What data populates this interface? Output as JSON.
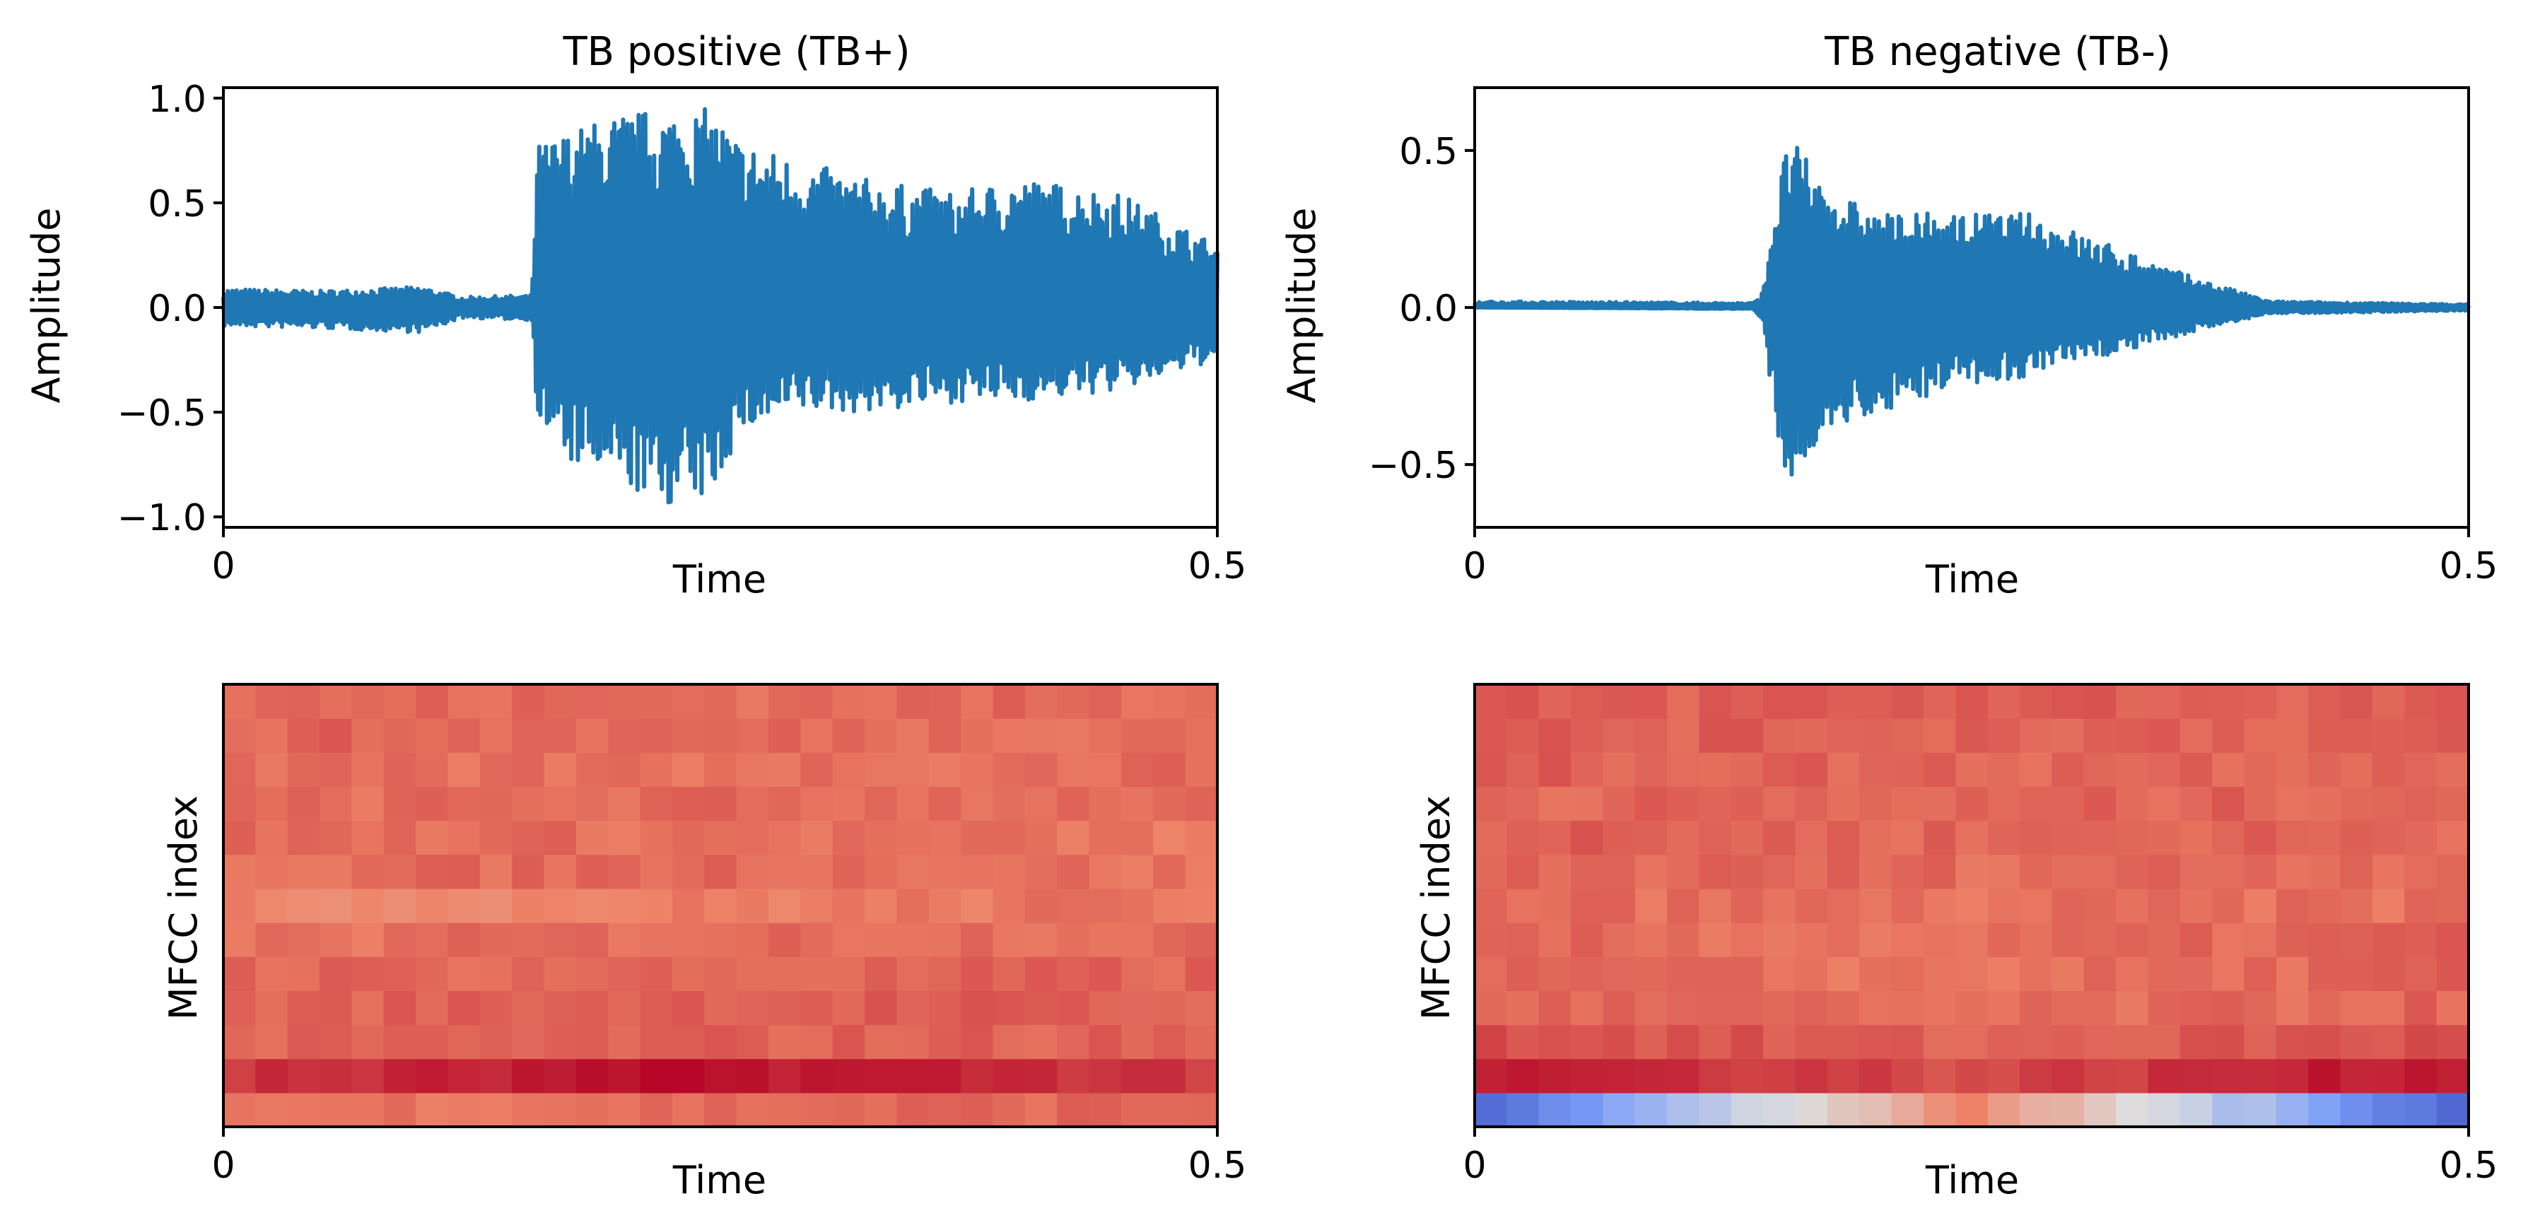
{
  "chart_data": [
    {
      "type": "line",
      "title": "TB positive (TB+)",
      "xlabel": "Time",
      "ylabel": "Amplitude",
      "xlim": [
        0,
        0.5
      ],
      "ylim": [
        -1.05,
        1.05
      ],
      "xticks": [
        {
          "value": 0,
          "label": "0"
        },
        {
          "value": 0.5,
          "label": "0.5"
        }
      ],
      "yticks": [
        {
          "value": -1.0,
          "label": "−1.0"
        },
        {
          "value": -0.5,
          "label": "−0.5"
        },
        {
          "value": 0.0,
          "label": "0.0"
        },
        {
          "value": 0.5,
          "label": "0.5"
        },
        {
          "value": 1.0,
          "label": "1.0"
        }
      ],
      "color": "#1f77b4",
      "envelope": [
        {
          "t": 0.0,
          "max": 0.09,
          "min": -0.09
        },
        {
          "t": 0.05,
          "max": 0.08,
          "min": -0.1
        },
        {
          "t": 0.1,
          "max": 0.1,
          "min": -0.12
        },
        {
          "t": 0.12,
          "max": 0.05,
          "min": -0.05
        },
        {
          "t": 0.155,
          "max": 0.06,
          "min": -0.06
        },
        {
          "t": 0.158,
          "max": 0.78,
          "min": -0.55
        },
        {
          "t": 0.175,
          "max": 0.85,
          "min": -0.75
        },
        {
          "t": 0.2,
          "max": 0.93,
          "min": -0.85
        },
        {
          "t": 0.22,
          "max": 0.95,
          "min": -0.95
        },
        {
          "t": 0.245,
          "max": 0.95,
          "min": -0.92
        },
        {
          "t": 0.26,
          "max": 0.8,
          "min": -0.6
        },
        {
          "t": 0.29,
          "max": 0.7,
          "min": -0.5
        },
        {
          "t": 0.33,
          "max": 0.6,
          "min": -0.5
        },
        {
          "t": 0.37,
          "max": 0.55,
          "min": -0.45
        },
        {
          "t": 0.4,
          "max": 0.62,
          "min": -0.45
        },
        {
          "t": 0.45,
          "max": 0.55,
          "min": -0.4
        },
        {
          "t": 0.5,
          "max": 0.3,
          "min": -0.25
        }
      ]
    },
    {
      "type": "line",
      "title": "TB negative (TB-)",
      "xlabel": "Time",
      "ylabel": "Amplitude",
      "xlim": [
        0,
        0.5
      ],
      "ylim": [
        -0.7,
        0.7
      ],
      "xticks": [
        {
          "value": 0,
          "label": "0"
        },
        {
          "value": 0.5,
          "label": "0.5"
        }
      ],
      "yticks": [
        {
          "value": -0.5,
          "label": "−0.5"
        },
        {
          "value": 0.0,
          "label": "0.0"
        },
        {
          "value": 0.5,
          "label": "0.5"
        }
      ],
      "color": "#1f77b4",
      "envelope": [
        {
          "t": 0.0,
          "max": 0.02,
          "min": 0.0
        },
        {
          "t": 0.14,
          "max": 0.015,
          "min": -0.005
        },
        {
          "t": 0.145,
          "max": 0.05,
          "min": -0.05
        },
        {
          "t": 0.15,
          "max": 0.3,
          "min": -0.3
        },
        {
          "t": 0.158,
          "max": 0.55,
          "min": -0.62
        },
        {
          "t": 0.175,
          "max": 0.4,
          "min": -0.4
        },
        {
          "t": 0.2,
          "max": 0.3,
          "min": -0.35
        },
        {
          "t": 0.24,
          "max": 0.3,
          "min": -0.25
        },
        {
          "t": 0.28,
          "max": 0.3,
          "min": -0.22
        },
        {
          "t": 0.32,
          "max": 0.2,
          "min": -0.15
        },
        {
          "t": 0.36,
          "max": 0.1,
          "min": -0.08
        },
        {
          "t": 0.4,
          "max": 0.02,
          "min": -0.02
        },
        {
          "t": 0.5,
          "max": 0.01,
          "min": -0.01
        }
      ]
    },
    {
      "type": "heatmap",
      "xlabel": "Time",
      "ylabel": "MFCC index",
      "xlim": [
        0,
        0.5
      ],
      "xticks": [
        {
          "value": 0,
          "label": "0"
        },
        {
          "value": 0.5,
          "label": "0.5"
        }
      ],
      "colormap": "coolwarm",
      "value_range": [
        -1,
        1
      ],
      "rows": 13,
      "cols": 31,
      "row_profiles": [
        {
          "left": 0.55,
          "mid": 0.6,
          "right": 0.62
        },
        {
          "left": 0.8,
          "mid": 0.95,
          "right": 0.8
        },
        {
          "left": 0.6,
          "mid": 0.63,
          "right": 0.63
        },
        {
          "left": 0.62,
          "mid": 0.66,
          "right": 0.62
        },
        {
          "left": 0.62,
          "mid": 0.6,
          "right": 0.62
        },
        {
          "left": 0.56,
          "mid": 0.6,
          "right": 0.6
        },
        {
          "left": 0.48,
          "mid": 0.52,
          "right": 0.56
        },
        {
          "left": 0.58,
          "mid": 0.62,
          "right": 0.56
        },
        {
          "left": 0.6,
          "mid": 0.58,
          "right": 0.54
        },
        {
          "left": 0.58,
          "mid": 0.6,
          "right": 0.6
        },
        {
          "left": 0.56,
          "mid": 0.58,
          "right": 0.6
        },
        {
          "left": 0.62,
          "mid": 0.6,
          "right": 0.6
        },
        {
          "left": 0.6,
          "mid": 0.6,
          "right": 0.6
        }
      ]
    },
    {
      "type": "heatmap",
      "xlabel": "Time",
      "ylabel": "MFCC index",
      "xlim": [
        0,
        0.5
      ],
      "xticks": [
        {
          "value": 0,
          "label": "0"
        },
        {
          "value": 0.5,
          "label": "0.5"
        }
      ],
      "colormap": "coolwarm",
      "value_range": [
        -1,
        1
      ],
      "rows": 13,
      "cols": 31,
      "row_profiles": [
        {
          "left": -0.75,
          "mid": 0.45,
          "right": -0.8
        },
        {
          "left": 0.92,
          "mid": 0.72,
          "right": 0.95
        },
        {
          "left": 0.72,
          "mid": 0.62,
          "right": 0.7
        },
        {
          "left": 0.62,
          "mid": 0.56,
          "right": 0.62
        },
        {
          "left": 0.6,
          "mid": 0.56,
          "right": 0.62
        },
        {
          "left": 0.6,
          "mid": 0.56,
          "right": 0.64
        },
        {
          "left": 0.6,
          "mid": 0.56,
          "right": 0.58
        },
        {
          "left": 0.62,
          "mid": 0.6,
          "right": 0.62
        },
        {
          "left": 0.64,
          "mid": 0.62,
          "right": 0.62
        },
        {
          "left": 0.62,
          "mid": 0.6,
          "right": 0.64
        },
        {
          "left": 0.64,
          "mid": 0.62,
          "right": 0.64
        },
        {
          "left": 0.64,
          "mid": 0.64,
          "right": 0.64
        },
        {
          "left": 0.64,
          "mid": 0.66,
          "right": 0.64
        }
      ]
    }
  ]
}
